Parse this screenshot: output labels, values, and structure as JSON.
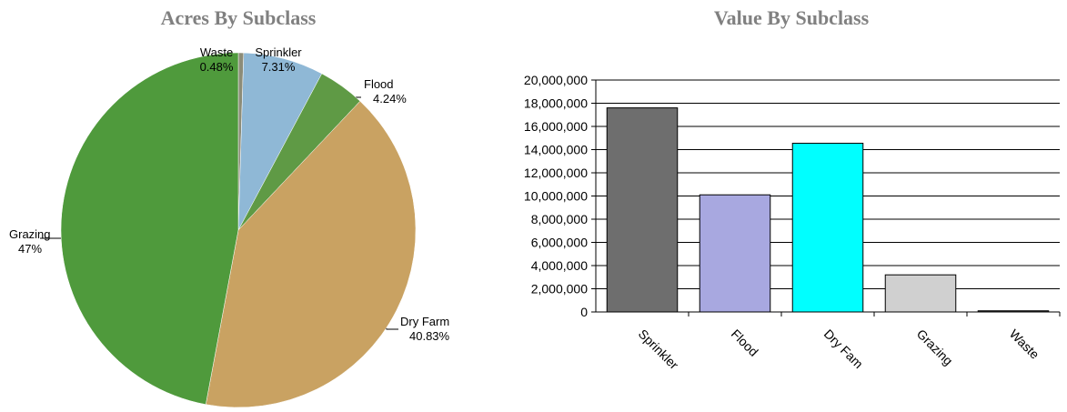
{
  "chart_data": [
    {
      "type": "pie",
      "title": "Acres By Subclass",
      "categories": [
        "Waste",
        "Sprinkler",
        "Flood",
        "Dry Farm",
        "Grazing"
      ],
      "values": [
        0.48,
        7.31,
        4.24,
        40.83,
        47
      ],
      "value_labels": [
        "0.48%",
        "7.31%",
        "4.24%",
        "40.83%",
        "47%"
      ],
      "colors": [
        "#8c8c78",
        "#8fb8d6",
        "#5f9a45",
        "#c9a262",
        "#4f9a3c"
      ]
    },
    {
      "type": "bar",
      "title": "Value By Subclass",
      "categories": [
        "Sprinkler",
        "Flood",
        "Dry Fam",
        "Grazing",
        "Waste"
      ],
      "values": [
        17600000,
        10100000,
        14550000,
        3200000,
        100000
      ],
      "colors": [
        "#6e6e6e",
        "#a8a8e0",
        "#00ffff",
        "#d0d0d0",
        "#404040"
      ],
      "ylim": [
        0,
        20000000
      ],
      "yticks": [
        0,
        {
          "value": 2000000,
          "label": "2,000,000"
        },
        {
          "value": 4000000,
          "label": "4,000,000"
        },
        {
          "value": 6000000,
          "label": "6,000,000"
        },
        {
          "value": 8000000,
          "label": "8,000,000"
        },
        {
          "value": 10000000,
          "label": "10,000,000"
        },
        {
          "value": 12000000,
          "label": "12,000,000"
        },
        {
          "value": 14000000,
          "label": "14,000,000"
        },
        {
          "value": 16000000,
          "label": "16,000,000"
        },
        {
          "value": 18000000,
          "label": "18,000,000"
        },
        {
          "value": 20000000,
          "label": "20,000,000"
        }
      ],
      "grid": true
    }
  ]
}
